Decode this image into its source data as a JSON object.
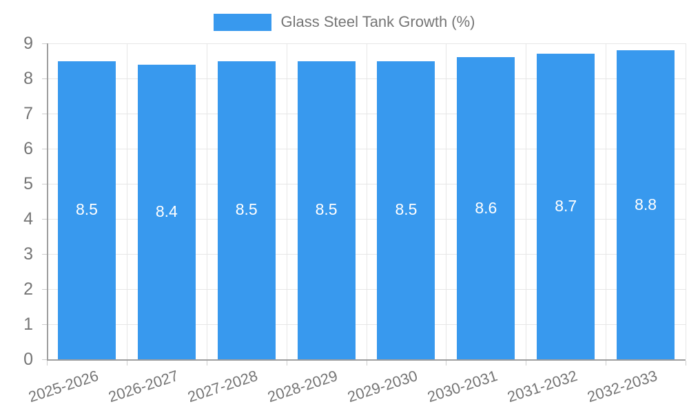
{
  "legend": {
    "label": "Glass Steel Tank Growth (%)",
    "swatch_color": "#3899EE"
  },
  "chart_data": {
    "type": "bar",
    "title": "Glass Steel Tank Growth (%)",
    "categories": [
      "2025-2026",
      "2026-2027",
      "2027-2028",
      "2028-2029",
      "2029-2030",
      "2030-2031",
      "2031-2032",
      "2032-2033"
    ],
    "series": [
      {
        "name": "Glass Steel Tank Growth (%)",
        "values": [
          8.5,
          8.4,
          8.5,
          8.5,
          8.5,
          8.6,
          8.7,
          8.8
        ],
        "value_labels": [
          "8.5",
          "8.4",
          "8.5",
          "8.5",
          "8.5",
          "8.6",
          "8.7",
          "8.8"
        ],
        "color": "#3899EE"
      }
    ],
    "xlabel": "",
    "ylabel": "",
    "ylim": [
      0,
      9
    ],
    "yticks": [
      0,
      1,
      2,
      3,
      4,
      5,
      6,
      7,
      8,
      9
    ],
    "grid": true,
    "legend_position": "top",
    "value_label_color": "#ffffff",
    "axis_color": "#9e9e9e",
    "grid_color": "#e6e6e6",
    "tick_text_color": "#757575"
  }
}
